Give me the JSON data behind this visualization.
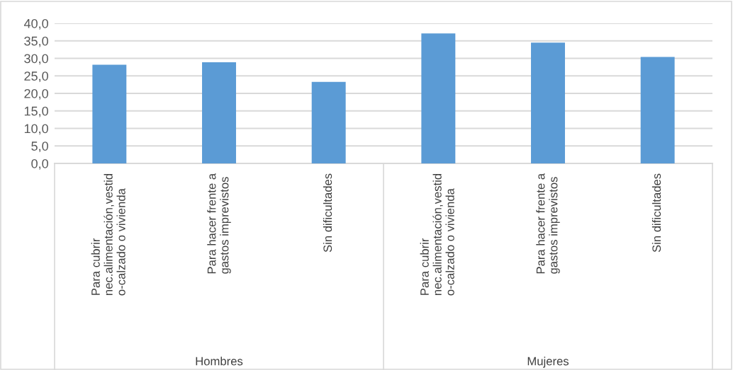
{
  "chart_data": {
    "type": "bar",
    "categories": [
      "Para cubrir\nnec.alimentación,vestid\no-calzado o vivienda",
      "Para hacer frente a\ngastos imprevistos",
      "Sin dificultades",
      "Para cubrir\nnec.alimentación,vestid\no-calzado o vivienda",
      "Para hacer frente a\ngastos imprevistos",
      "Sin dificultades"
    ],
    "values": [
      28.2,
      28.9,
      23.3,
      37.1,
      34.5,
      30.4
    ],
    "color": "#5b9bd5",
    "ylim": [
      0,
      40
    ],
    "yticks": [
      {
        "value": 0,
        "label": "0,0"
      },
      {
        "value": 5,
        "label": "5,0"
      },
      {
        "value": 10,
        "label": "10,0"
      },
      {
        "value": 15,
        "label": "15,0"
      },
      {
        "value": 20,
        "label": "20,0"
      },
      {
        "value": 25,
        "label": "25,0"
      },
      {
        "value": 30,
        "label": "30,0"
      },
      {
        "value": 35,
        "label": "35,0"
      },
      {
        "value": 40,
        "label": "40,0"
      }
    ],
    "grid": "y",
    "annotations": [
      "Hombres",
      "Mujeres"
    ]
  }
}
